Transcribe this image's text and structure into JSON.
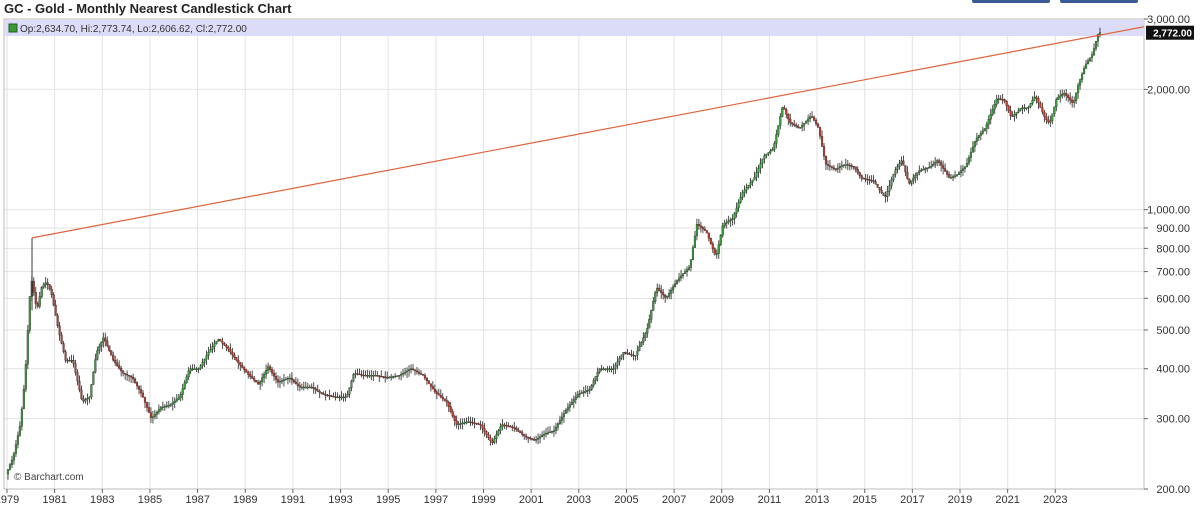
{
  "header": {
    "title": "GC - Gold - Monthly Nearest Candlestick Chart"
  },
  "ohlc_bar": {
    "text": "Op:2,634.70, Hi:2,773.74, Lo:2,606.62, Cl:2,772.00"
  },
  "watermark": "© Barchart.com",
  "colors": {
    "up": "#3a9a3a",
    "down": "#c0392b",
    "trendline": "#e0643c",
    "grid": "#e2e2e2",
    "ohlc_band": "#dcdcf8",
    "last_label_bg": "#111111"
  },
  "chart_data": {
    "type": "candlestick",
    "title": "GC - Gold - Monthly Nearest Candlestick Chart",
    "y_scale": "log",
    "ylim": [
      200,
      3000
    ],
    "y_ticks": [
      200,
      300,
      400,
      500,
      600,
      700,
      800,
      900,
      1000,
      2000,
      3000
    ],
    "y_tick_labels": [
      "200.00",
      "300.00",
      "400.00",
      "500.00",
      "600.00",
      "700.00",
      "800.00",
      "900.00",
      "1,000.00",
      "2,000.00",
      "3,000.00"
    ],
    "x_ticks": [
      1979,
      1981,
      1983,
      1985,
      1987,
      1989,
      1991,
      1993,
      1995,
      1997,
      1999,
      2001,
      2003,
      2005,
      2007,
      2009,
      2011,
      2013,
      2015,
      2017,
      2019,
      2021,
      2023
    ],
    "x_tick_labels": [
      "1979",
      "1981",
      "1983",
      "1985",
      "1987",
      "1989",
      "1991",
      "1993",
      "1995",
      "1997",
      "1999",
      "2001",
      "2003",
      "2005",
      "2007",
      "2009",
      "2011",
      "2013",
      "2015",
      "2017",
      "2019",
      "2021",
      "2023"
    ],
    "xlim": [
      1979.0,
      2025.8
    ],
    "last_value_label": "2,772.00",
    "last_close": 2772.0,
    "trendline": [
      {
        "x": 1980.05,
        "y": 850
      },
      {
        "x": 2024.85,
        "y": 2772
      }
    ],
    "price_path": [
      [
        1979.0,
        218
      ],
      [
        1979.3,
        240
      ],
      [
        1979.6,
        290
      ],
      [
        1979.8,
        380
      ],
      [
        1980.05,
        680
      ],
      [
        1980.3,
        560
      ],
      [
        1980.5,
        640
      ],
      [
        1980.7,
        660
      ],
      [
        1980.9,
        620
      ],
      [
        1981.2,
        500
      ],
      [
        1981.5,
        420
      ],
      [
        1981.8,
        420
      ],
      [
        1982.2,
        330
      ],
      [
        1982.5,
        340
      ],
      [
        1982.8,
        440
      ],
      [
        1983.1,
        480
      ],
      [
        1983.5,
        420
      ],
      [
        1983.9,
        390
      ],
      [
        1984.3,
        380
      ],
      [
        1984.7,
        345
      ],
      [
        1985.1,
        300
      ],
      [
        1985.5,
        320
      ],
      [
        1985.9,
        325
      ],
      [
        1986.3,
        340
      ],
      [
        1986.7,
        400
      ],
      [
        1987.1,
        400
      ],
      [
        1987.5,
        440
      ],
      [
        1987.9,
        475
      ],
      [
        1988.3,
        450
      ],
      [
        1988.8,
        410
      ],
      [
        1989.2,
        385
      ],
      [
        1989.6,
        365
      ],
      [
        1990.0,
        405
      ],
      [
        1990.4,
        370
      ],
      [
        1990.9,
        380
      ],
      [
        1991.3,
        360
      ],
      [
        1991.8,
        360
      ],
      [
        1992.3,
        345
      ],
      [
        1992.8,
        340
      ],
      [
        1993.3,
        340
      ],
      [
        1993.6,
        390
      ],
      [
        1994.0,
        385
      ],
      [
        1994.5,
        385
      ],
      [
        1995.0,
        380
      ],
      [
        1995.5,
        385
      ],
      [
        1996.0,
        400
      ],
      [
        1996.5,
        385
      ],
      [
        1997.0,
        350
      ],
      [
        1997.5,
        330
      ],
      [
        1997.9,
        290
      ],
      [
        1998.4,
        295
      ],
      [
        1998.9,
        290
      ],
      [
        1999.4,
        260
      ],
      [
        1999.8,
        290
      ],
      [
        2000.3,
        285
      ],
      [
        2000.8,
        270
      ],
      [
        2001.2,
        265
      ],
      [
        2001.6,
        275
      ],
      [
        2002.0,
        280
      ],
      [
        2002.5,
        315
      ],
      [
        2003.0,
        345
      ],
      [
        2003.5,
        355
      ],
      [
        2003.9,
        400
      ],
      [
        2004.5,
        400
      ],
      [
        2004.9,
        440
      ],
      [
        2005.4,
        430
      ],
      [
        2005.9,
        500
      ],
      [
        2006.3,
        640
      ],
      [
        2006.7,
        600
      ],
      [
        2007.2,
        670
      ],
      [
        2007.7,
        720
      ],
      [
        2008.0,
        920
      ],
      [
        2008.4,
        880
      ],
      [
        2008.8,
        760
      ],
      [
        2009.1,
        920
      ],
      [
        2009.5,
        950
      ],
      [
        2009.9,
        1100
      ],
      [
        2010.4,
        1200
      ],
      [
        2010.8,
        1360
      ],
      [
        2011.2,
        1420
      ],
      [
        2011.6,
        1820
      ],
      [
        2011.9,
        1650
      ],
      [
        2012.3,
        1600
      ],
      [
        2012.8,
        1720
      ],
      [
        2013.1,
        1600
      ],
      [
        2013.4,
        1300
      ],
      [
        2013.8,
        1260
      ],
      [
        2014.2,
        1300
      ],
      [
        2014.6,
        1280
      ],
      [
        2014.9,
        1200
      ],
      [
        2015.4,
        1180
      ],
      [
        2015.9,
        1070
      ],
      [
        2016.3,
        1250
      ],
      [
        2016.6,
        1330
      ],
      [
        2016.9,
        1160
      ],
      [
        2017.3,
        1250
      ],
      [
        2017.8,
        1280
      ],
      [
        2018.1,
        1330
      ],
      [
        2018.6,
        1200
      ],
      [
        2018.9,
        1220
      ],
      [
        2019.3,
        1290
      ],
      [
        2019.7,
        1500
      ],
      [
        2020.1,
        1600
      ],
      [
        2020.6,
        1900
      ],
      [
        2020.9,
        1880
      ],
      [
        2021.2,
        1700
      ],
      [
        2021.6,
        1800
      ],
      [
        2021.9,
        1800
      ],
      [
        2022.2,
        1930
      ],
      [
        2022.6,
        1700
      ],
      [
        2022.8,
        1640
      ],
      [
        2023.1,
        1900
      ],
      [
        2023.4,
        1960
      ],
      [
        2023.8,
        1840
      ],
      [
        2024.0,
        2050
      ],
      [
        2024.3,
        2300
      ],
      [
        2024.6,
        2450
      ],
      [
        2024.85,
        2772
      ]
    ]
  }
}
